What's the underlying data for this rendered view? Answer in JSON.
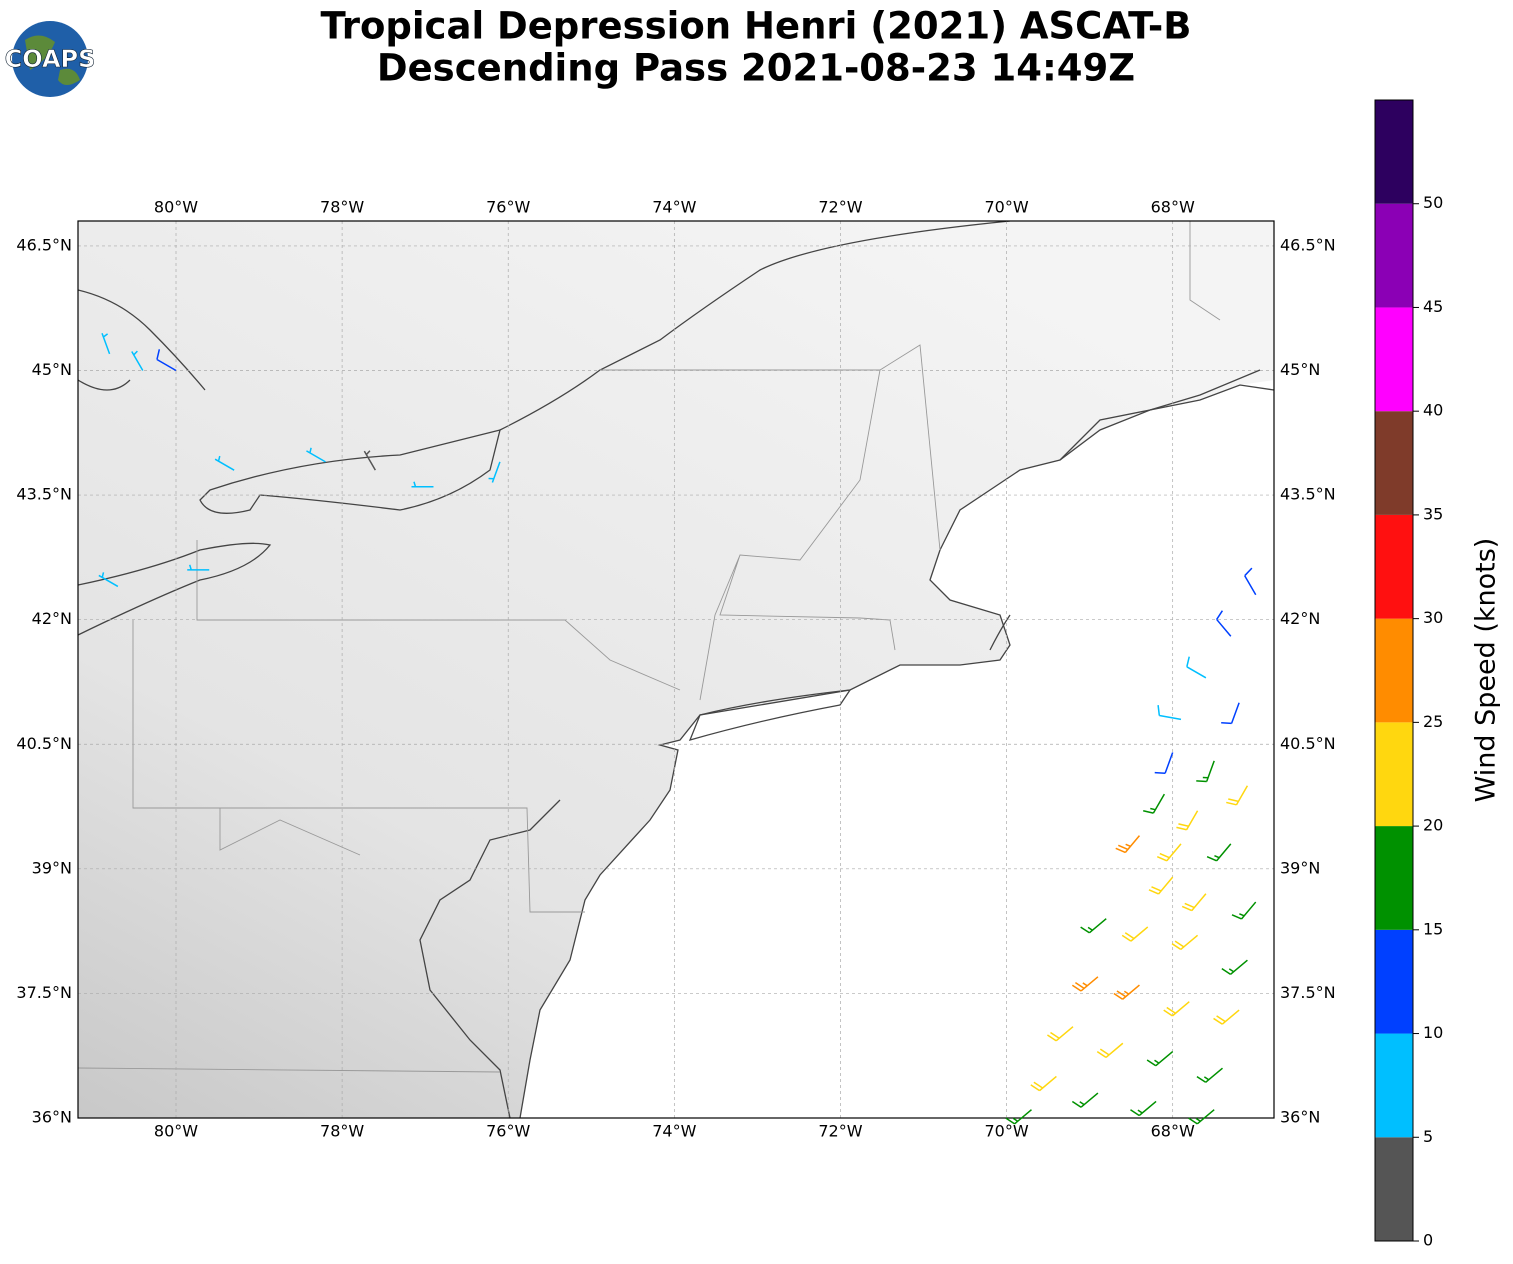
{
  "logo": "COAPS",
  "title": [
    "Tropical Depression Henri (2021) ASCAT-B",
    "Descending Pass 2021-08-23 14:49Z"
  ],
  "map": {
    "xlim": [
      -81.18,
      -66.78
    ],
    "ylim": [
      36,
      46.8
    ],
    "grid": true,
    "xticks": [
      {
        "value": -80,
        "label": "80°W"
      },
      {
        "value": -78,
        "label": "78°W"
      },
      {
        "value": -76,
        "label": "76°W"
      },
      {
        "value": -74,
        "label": "74°W"
      },
      {
        "value": -72,
        "label": "72°W"
      },
      {
        "value": -70,
        "label": "70°W"
      },
      {
        "value": -68,
        "label": "68°W"
      }
    ],
    "yticks": [
      {
        "value": 36,
        "label": "36°N"
      },
      {
        "value": 37.5,
        "label": "37.5°N"
      },
      {
        "value": 39,
        "label": "39°N"
      },
      {
        "value": 40.5,
        "label": "40.5°N"
      },
      {
        "value": 42,
        "label": "42°N"
      },
      {
        "value": 43.5,
        "label": "43.5°N"
      },
      {
        "value": 45,
        "label": "45°N"
      },
      {
        "value": 46.5,
        "label": "46.5°N"
      }
    ]
  },
  "wind": {
    "lon": [
      -67.0,
      -67.3,
      -67.6,
      -67.2,
      -67.9,
      -68.0,
      -67.5,
      -67.1,
      -68.1,
      -67.7,
      -68.4,
      -67.9,
      -67.3,
      -68.0,
      -67.6,
      -67.0,
      -68.8,
      -68.3,
      -67.7,
      -67.1,
      -68.9,
      -68.4,
      -67.8,
      -67.2,
      -69.2,
      -68.6,
      -68.0,
      -67.4,
      -69.4,
      -68.9,
      -68.2,
      -67.5,
      -69.7,
      -80.8,
      -80.4,
      -80.0,
      -79.3,
      -78.2,
      -76.9,
      -76.1,
      -77.6,
      -80.7,
      -79.6
    ],
    "lat": [
      42.3,
      41.8,
      41.3,
      41.0,
      40.8,
      40.4,
      40.3,
      40.0,
      39.9,
      39.7,
      39.4,
      39.3,
      39.3,
      38.9,
      38.7,
      38.6,
      38.4,
      38.3,
      38.2,
      37.9,
      37.7,
      37.6,
      37.4,
      37.3,
      37.1,
      36.9,
      36.8,
      36.6,
      36.5,
      36.3,
      36.2,
      36.1,
      36.1,
      45.2,
      45.0,
      45.0,
      43.8,
      43.9,
      43.6,
      43.9,
      43.8,
      42.4,
      42.6
    ],
    "speed": [
      12,
      12,
      8,
      12,
      8,
      12,
      17,
      22,
      17,
      22,
      27,
      22,
      17,
      22,
      22,
      17,
      17,
      22,
      22,
      17,
      27,
      27,
      22,
      22,
      22,
      22,
      17,
      17,
      22,
      17,
      17,
      17,
      17,
      7,
      7,
      12,
      7,
      7,
      7,
      7,
      3,
      7,
      7
    ],
    "direction": [
      330,
      320,
      300,
      200,
      280,
      200,
      200,
      210,
      210,
      210,
      220,
      220,
      220,
      220,
      220,
      220,
      230,
      230,
      230,
      230,
      230,
      230,
      230,
      230,
      230,
      230,
      230,
      230,
      230,
      230,
      230,
      230,
      230,
      340,
      330,
      300,
      300,
      300,
      270,
      200,
      330,
      300,
      270
    ]
  },
  "colorbar": {
    "label": "Wind Speed (knots)",
    "bounds": [
      0,
      55
    ],
    "ticks": [
      0,
      5,
      10,
      15,
      20,
      25,
      30,
      35,
      40,
      45,
      50
    ],
    "colors": [
      "#555555",
      "#00bfff",
      "#0040ff",
      "#009100",
      "#ffd70f",
      "#ff8c00",
      "#ff1010",
      "#7f3b2a",
      "#ff00ff",
      "#8b00b5",
      "#2d005f"
    ]
  }
}
